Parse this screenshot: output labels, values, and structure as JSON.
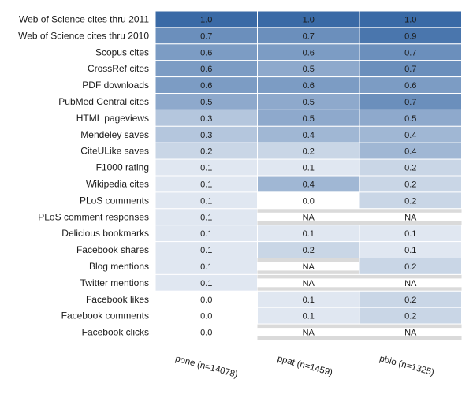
{
  "chart_data": {
    "type": "heatmap",
    "columns": [
      "pone (n=14078)",
      "ppat (n=1459)",
      "pbio (n=1325)"
    ],
    "rows": [
      "Web of Science cites thru 2011",
      "Web of Science cites thru 2010",
      "Scopus cites",
      "CrossRef cites",
      "PDF downloads",
      "PubMed Central cites",
      "HTML pageviews",
      "Mendeley saves",
      "CiteULike saves",
      "F1000 rating",
      "Wikipedia cites",
      "PLoS comments",
      "PLoS comment responses",
      "Delicious bookmarks",
      "Facebook shares",
      "Blog mentions",
      "Twitter mentions",
      "Facebook likes",
      "Facebook comments",
      "Facebook clicks"
    ],
    "values": [
      [
        "1.0",
        "1.0",
        "1.0"
      ],
      [
        "0.7",
        "0.7",
        "0.9"
      ],
      [
        "0.6",
        "0.6",
        "0.7"
      ],
      [
        "0.6",
        "0.5",
        "0.7"
      ],
      [
        "0.6",
        "0.6",
        "0.6"
      ],
      [
        "0.5",
        "0.5",
        "0.7"
      ],
      [
        "0.3",
        "0.5",
        "0.5"
      ],
      [
        "0.3",
        "0.4",
        "0.4"
      ],
      [
        "0.2",
        "0.2",
        "0.4"
      ],
      [
        "0.1",
        "0.1",
        "0.2"
      ],
      [
        "0.1",
        "0.4",
        "0.2"
      ],
      [
        "0.1",
        "0.0",
        "0.2"
      ],
      [
        "0.1",
        "NA",
        "NA"
      ],
      [
        "0.1",
        "0.1",
        "0.1"
      ],
      [
        "0.1",
        "0.2",
        "0.1"
      ],
      [
        "0.1",
        "NA",
        "0.2"
      ],
      [
        "0.1",
        "NA",
        "NA"
      ],
      [
        "0.0",
        "0.1",
        "0.2"
      ],
      [
        "0.0",
        "0.1",
        "0.2"
      ],
      [
        "0.0",
        "NA",
        "NA"
      ]
    ],
    "colors": {
      "high": "#3a6aa6",
      "low": "#ffffff",
      "na": "#dadada",
      "grid": "#ffffff"
    }
  }
}
